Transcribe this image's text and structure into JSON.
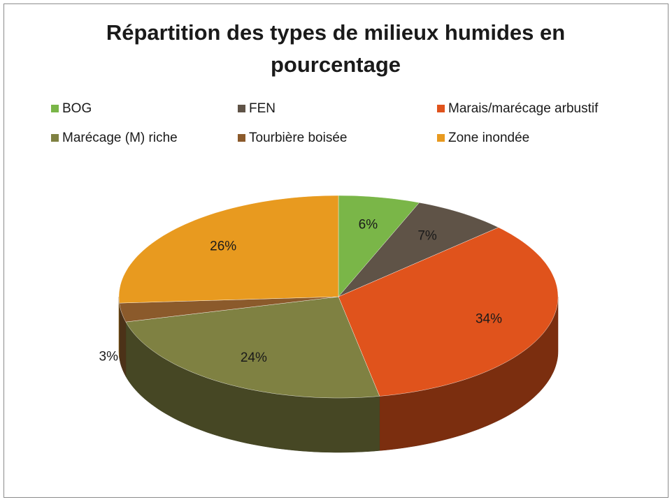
{
  "chart_data": {
    "type": "pie3d",
    "title": "Répartition des types de milieux humides en pourcentage",
    "categories": [
      "BOG",
      "FEN",
      "Marais/marécage arbustif",
      "Marécage (M) riche",
      "Tourbière boisée",
      "Zone inondée"
    ],
    "values": [
      6,
      7,
      34,
      24,
      3,
      26
    ],
    "value_labels": [
      "6%",
      "7%",
      "34%",
      "24%",
      "3%",
      "26%"
    ],
    "colors": [
      "#7ab648",
      "#5f5347",
      "#e0531c",
      "#7f8142",
      "#8b5a2b",
      "#e89a1f"
    ],
    "legend": "top"
  }
}
